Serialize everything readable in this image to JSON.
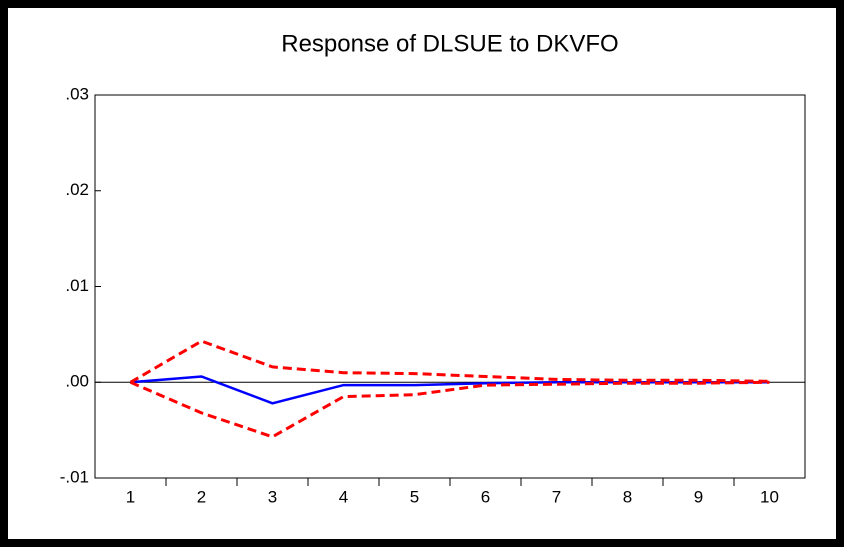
{
  "chart_data": {
    "type": "line",
    "title": "Response of DLSUE to DKVFO",
    "categories": [
      "1",
      "2",
      "3",
      "4",
      "5",
      "6",
      "7",
      "8",
      "9",
      "10"
    ],
    "series": [
      {
        "color": "#0000ff",
        "dash": false,
        "values": [
          0,
          0.0006,
          -0.0022,
          -0.0003,
          -0.0003,
          -0.0001,
          0,
          0,
          0,
          0
        ]
      },
      {
        "color": "#ff0000",
        "dash": true,
        "values": [
          0,
          0.0043,
          0.0016,
          0.001,
          0.0009,
          0.0006,
          0.0003,
          0.0002,
          0.0002,
          0.0001
        ]
      },
      {
        "color": "#ff0000",
        "dash": true,
        "values": [
          0,
          -0.0032,
          -0.0057,
          -0.0015,
          -0.0013,
          -0.0003,
          -0.0002,
          -0.0001,
          -0.0001,
          0
        ]
      }
    ],
    "ylim": [
      -0.01,
      0.03
    ],
    "yticks": [
      {
        "value": -0.01,
        "label": "-.01"
      },
      {
        "value": 0,
        "label": ".00"
      },
      {
        "value": 0.01,
        "label": ".01"
      },
      {
        "value": 0.02,
        "label": ".02"
      },
      {
        "value": 0.03,
        "label": ".03"
      }
    ]
  }
}
